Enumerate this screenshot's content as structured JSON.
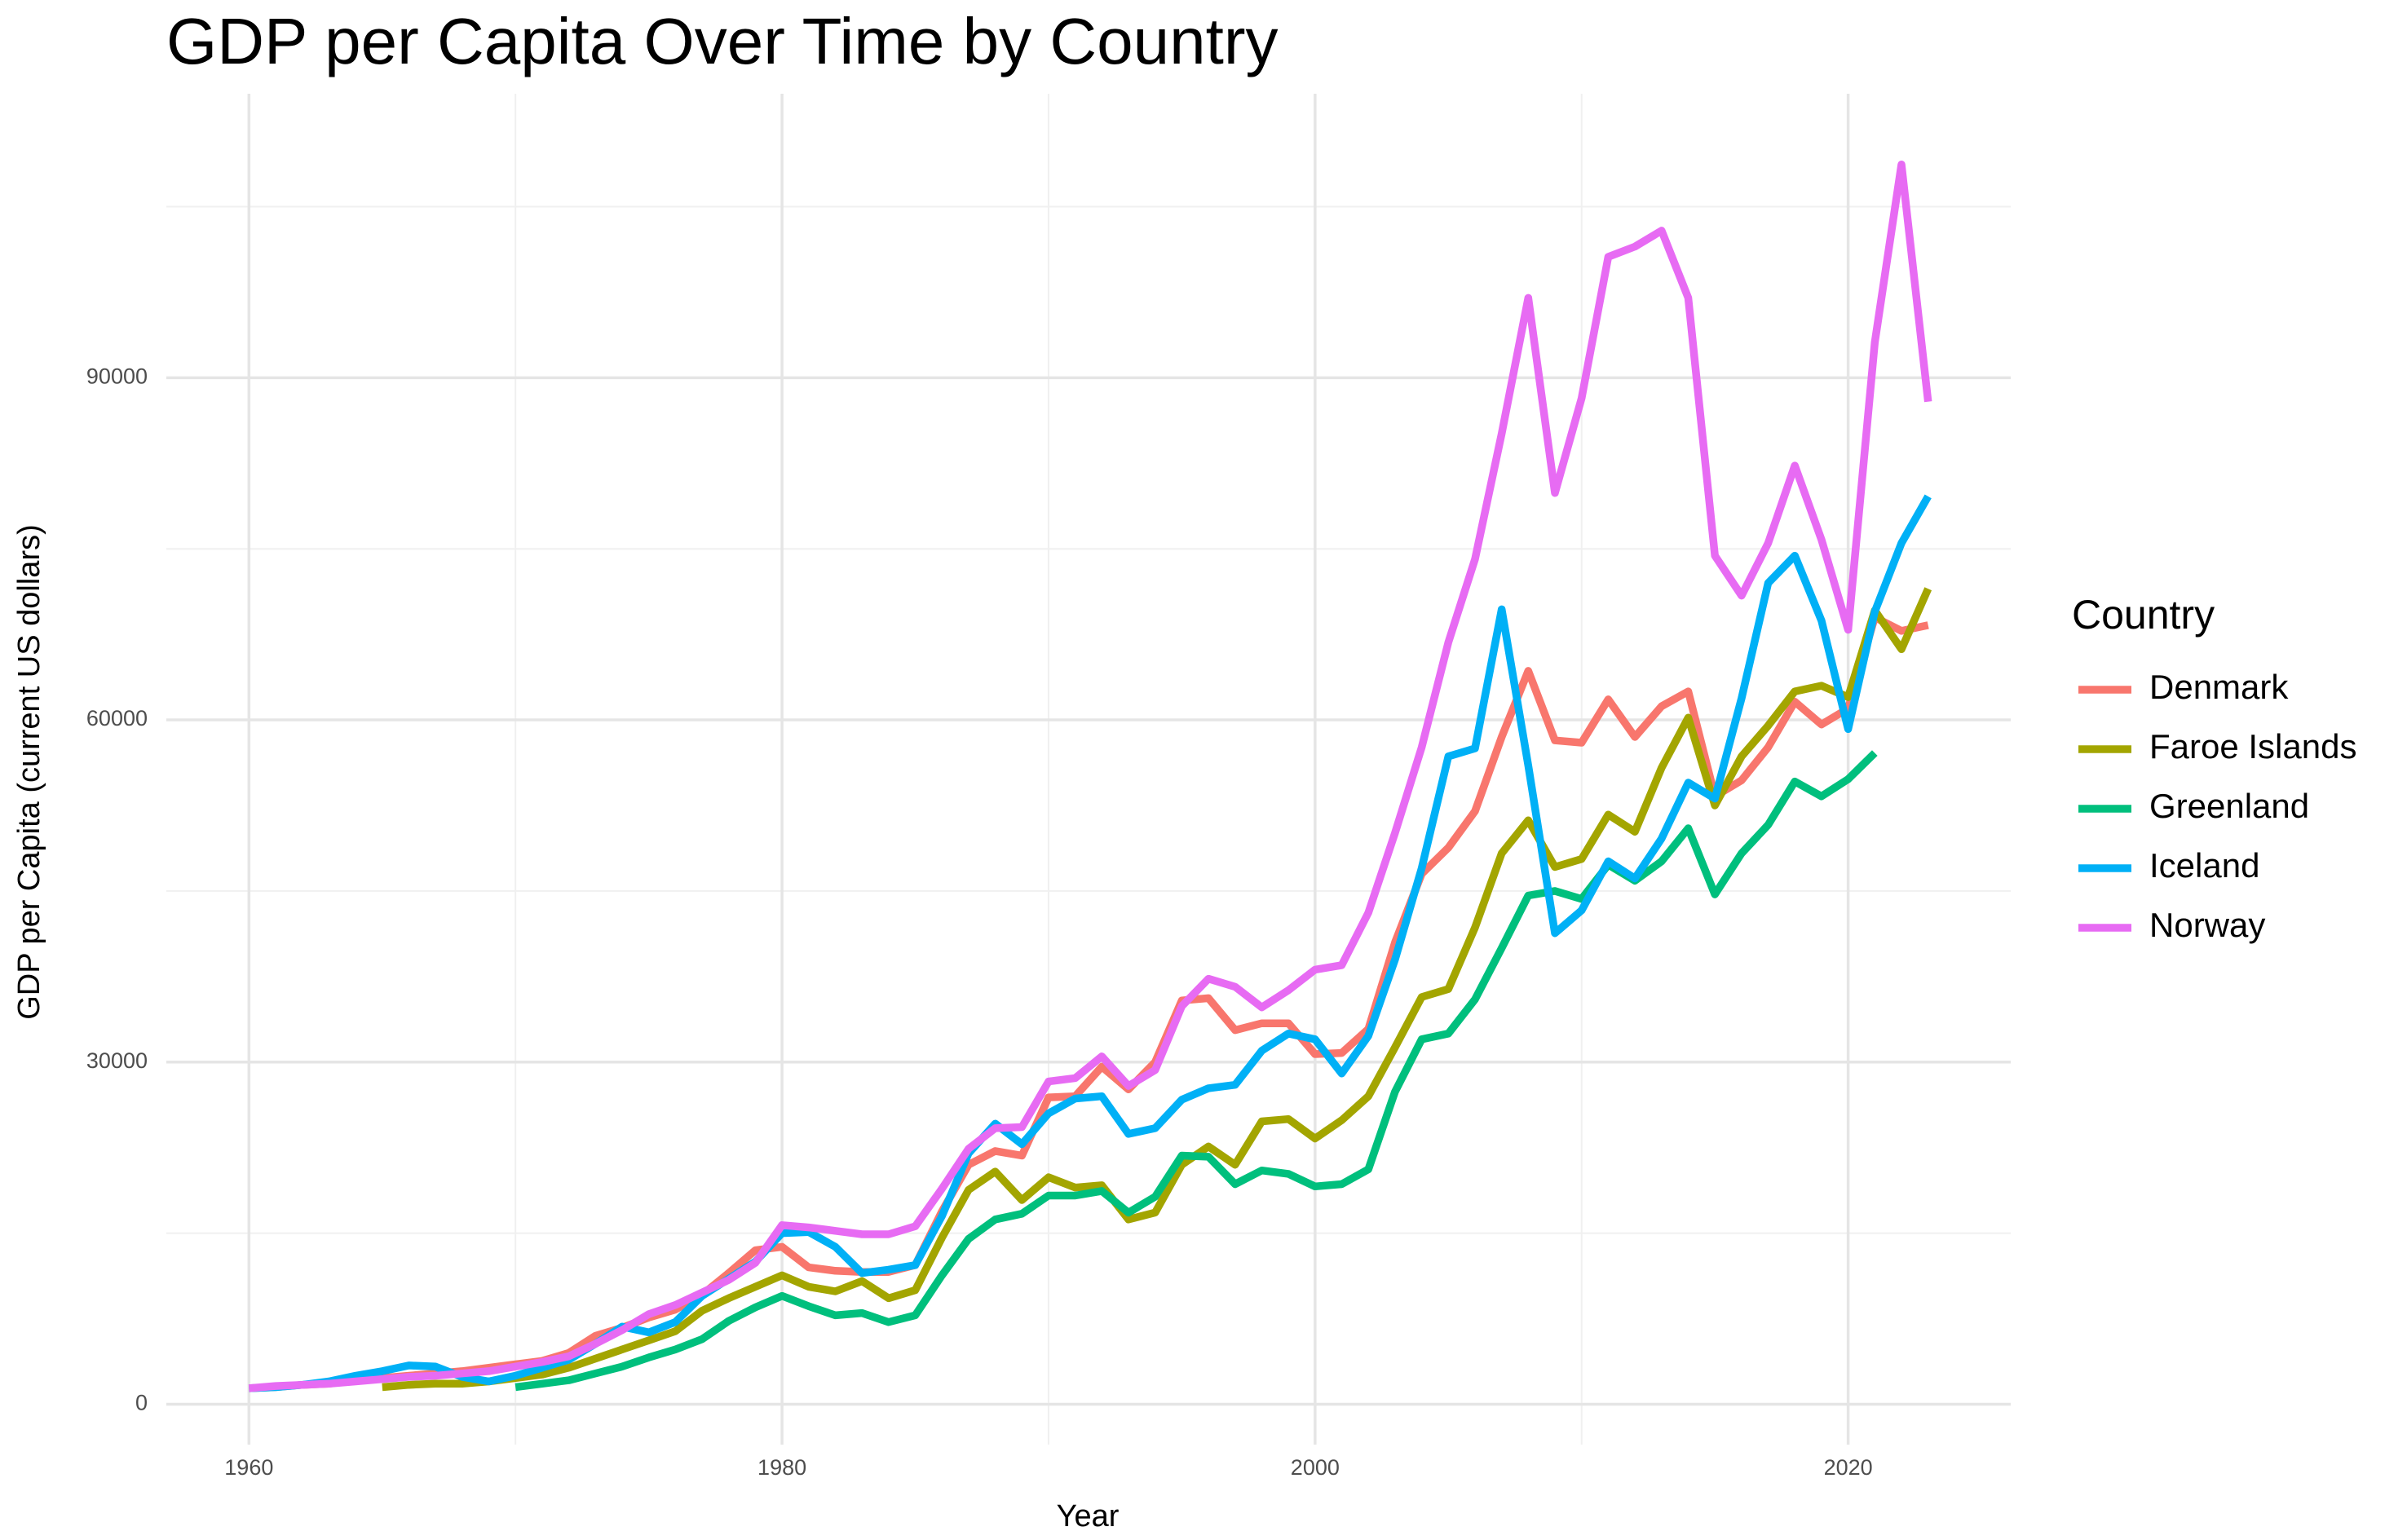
{
  "chart_data": {
    "type": "line",
    "title": "GDP per Capita Over Time by Country",
    "x_label": "Year",
    "y_label": "GDP per Capita (current US dollars)",
    "legend_title": "Country",
    "legend_position": "right",
    "grid": true,
    "xlim": [
      1956.9,
      2026.1
    ],
    "ylim": [
      -3540,
      114900
    ],
    "xticks": [
      1960,
      1980,
      2000,
      2020
    ],
    "yticks": [
      0,
      30000,
      60000,
      90000
    ],
    "x": [
      1960,
      1961,
      1962,
      1963,
      1964,
      1965,
      1966,
      1967,
      1968,
      1969,
      1970,
      1971,
      1972,
      1973,
      1974,
      1975,
      1976,
      1977,
      1978,
      1979,
      1980,
      1981,
      1982,
      1983,
      1984,
      1985,
      1986,
      1987,
      1988,
      1989,
      1990,
      1991,
      1992,
      1993,
      1994,
      1995,
      1996,
      1997,
      1998,
      1999,
      2000,
      2001,
      2002,
      2003,
      2004,
      2005,
      2006,
      2007,
      2008,
      2009,
      2010,
      2011,
      2012,
      2013,
      2014,
      2015,
      2016,
      2017,
      2018,
      2019,
      2020,
      2021,
      2022,
      2023
    ],
    "series": [
      {
        "name": "Denmark",
        "color": "#F8766D",
        "values": [
          1400,
          1500,
          1700,
          1800,
          2100,
          2300,
          2500,
          2700,
          2900,
          3200,
          3500,
          3800,
          4500,
          6000,
          6700,
          7600,
          8300,
          9600,
          11500,
          13500,
          13800,
          12000,
          11700,
          11600,
          11600,
          12200,
          16900,
          21000,
          22200,
          21800,
          26900,
          27000,
          29600,
          27600,
          30000,
          35400,
          35600,
          32800,
          33400,
          33400,
          30700,
          30800,
          32900,
          40500,
          46500,
          48800,
          52000,
          58500,
          64300,
          58200,
          58000,
          61800,
          58500,
          61200,
          62500,
          53300,
          54700,
          57600,
          61600,
          59600,
          61000,
          69000,
          67800,
          68300
        ]
      },
      {
        "name": "Faroe Islands",
        "color": "#A3A500",
        "values": [
          null,
          null,
          null,
          null,
          null,
          1500,
          1700,
          1800,
          1800,
          2000,
          2300,
          2600,
          3200,
          4000,
          4800,
          5600,
          6400,
          8200,
          9300,
          10300,
          11300,
          10300,
          9900,
          10800,
          9300,
          10000,
          14600,
          18800,
          20400,
          17900,
          19900,
          19000,
          19200,
          16200,
          16800,
          21000,
          22600,
          21000,
          24800,
          25000,
          23300,
          24900,
          27000,
          31300,
          35700,
          36400,
          41800,
          48300,
          51200,
          47100,
          47800,
          51700,
          50200,
          55800,
          60200,
          52500,
          56800,
          59500,
          62500,
          63000,
          62000,
          69600,
          66200,
          71500
        ]
      },
      {
        "name": "Greenland",
        "color": "#00BF7D",
        "values": [
          null,
          null,
          null,
          null,
          null,
          null,
          null,
          null,
          null,
          null,
          1500,
          1800,
          2100,
          2700,
          3300,
          4100,
          4800,
          5700,
          7300,
          8500,
          9500,
          8600,
          7800,
          8000,
          7200,
          7800,
          11300,
          14500,
          16200,
          16700,
          18300,
          18300,
          18700,
          16800,
          18200,
          21800,
          21700,
          19300,
          20500,
          20200,
          19100,
          19300,
          20600,
          27400,
          32000,
          32500,
          35500,
          40000,
          44600,
          45000,
          44300,
          47300,
          45900,
          47600,
          50500,
          44700,
          48300,
          50800,
          54600,
          53300,
          54800,
          57100,
          null,
          null
        ]
      },
      {
        "name": "Iceland",
        "color": "#00B0F6",
        "values": [
          1400,
          1500,
          1700,
          2000,
          2500,
          2900,
          3400,
          3300,
          2400,
          2000,
          2500,
          3200,
          3900,
          5300,
          6800,
          6300,
          7200,
          9500,
          11000,
          12500,
          15000,
          15100,
          13800,
          11500,
          11800,
          12200,
          16500,
          22000,
          24600,
          22800,
          25500,
          26800,
          27000,
          23700,
          24200,
          26700,
          27700,
          28000,
          31000,
          32500,
          32000,
          29000,
          32300,
          39000,
          47000,
          56800,
          57500,
          69700,
          56000,
          41300,
          43300,
          47600,
          46100,
          49600,
          54500,
          53100,
          61900,
          72000,
          74400,
          68700,
          59200,
          69500,
          75500,
          79600
        ]
      },
      {
        "name": "Norway",
        "color": "#E76BF3",
        "values": [
          1400,
          1600,
          1700,
          1800,
          2000,
          2200,
          2400,
          2500,
          2700,
          2900,
          3300,
          3700,
          4200,
          5300,
          6500,
          7900,
          8700,
          9800,
          10900,
          12400,
          15700,
          15500,
          15200,
          14900,
          14900,
          15600,
          18900,
          22400,
          24200,
          24300,
          28300,
          28600,
          30500,
          27900,
          29300,
          34900,
          37300,
          36600,
          34800,
          36300,
          38100,
          38500,
          43100,
          50100,
          57600,
          66800,
          74100,
          85100,
          97000,
          79900,
          88200,
          100600,
          101500,
          102900,
          97000,
          74400,
          70900,
          75500,
          82300,
          75800,
          67900,
          93100,
          108700,
          87900
        ]
      }
    ]
  }
}
